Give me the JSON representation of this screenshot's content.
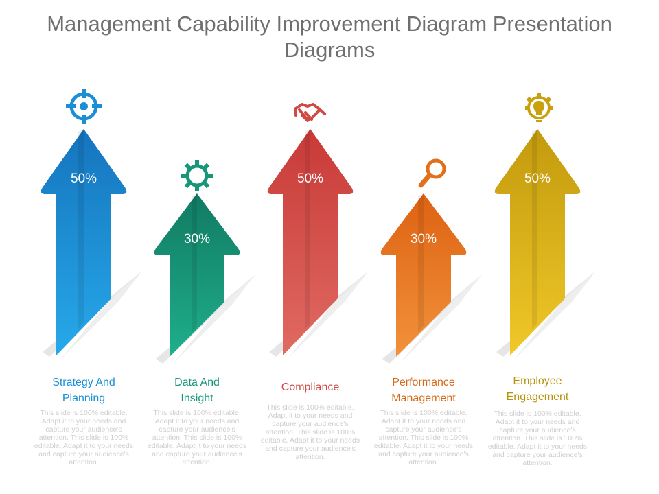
{
  "slide": {
    "title_line1": "Management Capability Improvement Diagram Presentation",
    "title_line2": "Diagrams"
  },
  "steps": [
    {
      "label_line1": "Strategy And",
      "label_line2": "Planning",
      "percent": "50%",
      "icon": "crosshair-icon",
      "color": "#1a8fd6",
      "description": "This slide is 100% editable. Adapt it to your needs and capture your audience's attention. This slide is 100% editable. Adapt it to your needs and capture your audience's attention."
    },
    {
      "label_line1": "Data And",
      "label_line2": "Insight",
      "percent": "30%",
      "icon": "gear-icon",
      "color": "#17977a",
      "description": "This slide is 100% editable. Adapt it to your needs and capture your audience's attention. This slide is 100% editable. Adapt it to your needs and capture your audience's attention."
    },
    {
      "label_line1": "Compliance",
      "label_line2": "",
      "percent": "50%",
      "icon": "handshake-icon",
      "color": "#cf4a44",
      "description": "This slide is 100% editable. Adapt it to your needs and capture your audience's attention. This slide is 100% editable. Adapt it to your needs and capture your audience's attention."
    },
    {
      "label_line1": "Performance",
      "label_line2": "Management",
      "percent": "30%",
      "icon": "magnifier-icon",
      "color": "#e36f1c",
      "description": "This slide is 100% editable. Adapt it to your needs and capture your audience's attention. This slide is 100% editable. Adapt it to your needs and capture your audience's attention."
    },
    {
      "label_line1": "Employee",
      "label_line2": "Engagement",
      "percent": "50%",
      "icon": "lightbulb-gear-icon",
      "color": "#c9a10e",
      "description": "This slide is 100% editable. Adapt it to your needs and capture your audience's attention. This slide is 100% editable. Adapt it to your needs and capture your audience's attention."
    }
  ]
}
